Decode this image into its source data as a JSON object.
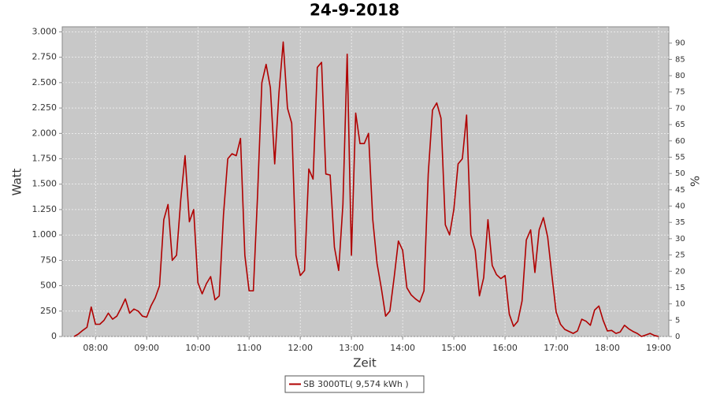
{
  "chart_data": {
    "type": "line",
    "title": "24-9-2018",
    "x_label": "Zeit",
    "y_label": "Watt",
    "y2_label": "%",
    "x": [
      "07:35",
      "07:40",
      "07:45",
      "07:50",
      "07:55",
      "08:00",
      "08:05",
      "08:10",
      "08:15",
      "08:20",
      "08:25",
      "08:30",
      "08:35",
      "08:40",
      "08:45",
      "08:50",
      "08:55",
      "09:00",
      "09:05",
      "09:10",
      "09:15",
      "09:20",
      "09:25",
      "09:30",
      "09:35",
      "09:40",
      "09:45",
      "09:50",
      "09:55",
      "10:00",
      "10:05",
      "10:10",
      "10:15",
      "10:20",
      "10:25",
      "10:30",
      "10:35",
      "10:40",
      "10:45",
      "10:50",
      "10:55",
      "11:00",
      "11:05",
      "11:10",
      "11:15",
      "11:20",
      "11:25",
      "11:30",
      "11:35",
      "11:40",
      "11:45",
      "11:50",
      "11:55",
      "12:00",
      "12:05",
      "12:10",
      "12:15",
      "12:20",
      "12:25",
      "12:30",
      "12:35",
      "12:40",
      "12:45",
      "12:50",
      "12:55",
      "13:00",
      "13:05",
      "13:10",
      "13:15",
      "13:20",
      "13:25",
      "13:30",
      "13:35",
      "13:40",
      "13:45",
      "13:50",
      "13:55",
      "14:00",
      "14:05",
      "14:10",
      "14:15",
      "14:20",
      "14:25",
      "14:30",
      "14:35",
      "14:40",
      "14:45",
      "14:50",
      "14:55",
      "15:00",
      "15:05",
      "15:10",
      "15:15",
      "15:20",
      "15:25",
      "15:30",
      "15:35",
      "15:40",
      "15:45",
      "15:50",
      "15:55",
      "16:00",
      "16:05",
      "16:10",
      "16:15",
      "16:20",
      "16:25",
      "16:30",
      "16:35",
      "16:40",
      "16:45",
      "16:50",
      "16:55",
      "17:00",
      "17:05",
      "17:10",
      "17:15",
      "17:20",
      "17:25",
      "17:30",
      "17:35",
      "17:40",
      "17:45",
      "17:50",
      "17:55",
      "18:00",
      "18:05",
      "18:10",
      "18:15",
      "18:20",
      "18:25",
      "18:30",
      "18:35",
      "18:40",
      "18:45",
      "18:50",
      "18:55",
      "19:00"
    ],
    "series": [
      {
        "name": "SB 3000TL( 9,574 kWh )",
        "color": "#b00000",
        "values": [
          0,
          25,
          60,
          90,
          290,
          120,
          120,
          160,
          230,
          170,
          200,
          280,
          370,
          230,
          270,
          250,
          200,
          190,
          300,
          380,
          500,
          1150,
          1300,
          750,
          800,
          1350,
          1780,
          1130,
          1250,
          530,
          420,
          520,
          590,
          360,
          400,
          1200,
          1750,
          1800,
          1780,
          1950,
          800,
          450,
          450,
          1400,
          2500,
          2680,
          2450,
          1700,
          2400,
          2900,
          2250,
          2100,
          800,
          600,
          650,
          1650,
          1550,
          2650,
          2700,
          1600,
          1590,
          880,
          650,
          1300,
          2780,
          800,
          2200,
          1900,
          1900,
          2000,
          1150,
          720,
          480,
          200,
          250,
          580,
          940,
          850,
          480,
          410,
          370,
          340,
          450,
          1600,
          2230,
          2300,
          2150,
          1100,
          1000,
          1250,
          1700,
          1750,
          2180,
          1000,
          850,
          400,
          580,
          1150,
          700,
          610,
          570,
          600,
          220,
          100,
          150,
          350,
          950,
          1050,
          630,
          1050,
          1170,
          980,
          600,
          240,
          120,
          70,
          50,
          30,
          55,
          170,
          150,
          110,
          260,
          300,
          160,
          55,
          60,
          30,
          45,
          110,
          75,
          50,
          30,
          0,
          15,
          30,
          10,
          0
        ]
      }
    ],
    "xlim": [
      "07:21",
      "19:12"
    ],
    "xticks": [
      "08:00",
      "09:00",
      "10:00",
      "11:00",
      "12:00",
      "13:00",
      "14:00",
      "15:00",
      "16:00",
      "17:00",
      "18:00",
      "19:00"
    ],
    "ylim": [
      0,
      3050
    ],
    "yticks": [
      0,
      250,
      500,
      750,
      {
        "value": 1000,
        "label": "1.000"
      },
      {
        "value": 1250,
        "label": "1.250"
      },
      {
        "value": 1500,
        "label": "1.500"
      },
      {
        "value": 1750,
        "label": "1.750"
      },
      {
        "value": 2000,
        "label": "2.000"
      },
      {
        "value": 2250,
        "label": "2.250"
      },
      {
        "value": 2500,
        "label": "2.500"
      },
      {
        "value": 2750,
        "label": "2.750"
      },
      {
        "value": 3000,
        "label": "3.000"
      }
    ],
    "y2lim": [
      0,
      95
    ],
    "y2ticks": [
      0,
      5,
      10,
      15,
      20,
      25,
      30,
      35,
      40,
      45,
      50,
      55,
      60,
      65,
      70,
      75,
      80,
      85,
      90
    ],
    "grid": true,
    "legend": "bottom",
    "plot_background": "#c8c8c8"
  }
}
